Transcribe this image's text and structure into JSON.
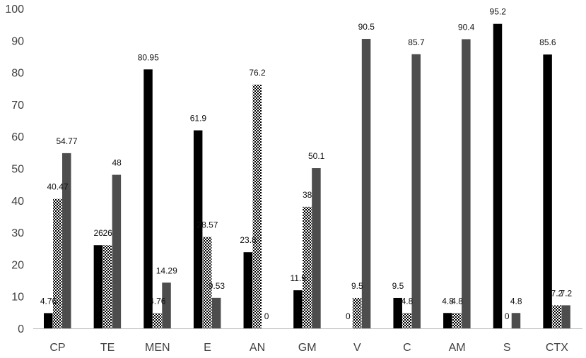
{
  "chart_data": {
    "type": "bar",
    "categories": [
      "CP",
      "TE",
      "MEN",
      "E",
      "AN",
      "GM",
      "V",
      "C",
      "AM",
      "S",
      "CTX"
    ],
    "series": [
      {
        "values": [
          4.76,
          26,
          80.95,
          61.9,
          23.8,
          11.9,
          0,
          9.5,
          4.8,
          95.2,
          85.6
        ],
        "labels": [
          "4.76",
          "26",
          "80.95",
          "61.9",
          "23.8",
          "11.9",
          "0",
          "9.5",
          "4.8",
          "95.2",
          "85.6"
        ],
        "color": "#000000",
        "pattern": "solid"
      },
      {
        "values": [
          40.47,
          26,
          4.76,
          28.57,
          76.2,
          38,
          9.5,
          4.8,
          4.8,
          0,
          7.2
        ],
        "labels": [
          "40.47",
          "26",
          "4.76",
          "28.57",
          "76.2",
          "38",
          "9.5",
          "4.8",
          "4.8",
          "0",
          "7.2"
        ],
        "color": "#000000",
        "pattern": "checker"
      },
      {
        "values": [
          54.77,
          48,
          14.29,
          9.53,
          0,
          50.1,
          90.5,
          85.7,
          90.4,
          4.8,
          7.2
        ],
        "labels": [
          "54.77",
          "48",
          "14.29",
          "9.53",
          "0",
          "50.1",
          "90.5",
          "85.7",
          "90.4",
          "4.8",
          "7.2"
        ],
        "color": "#4d4d4d",
        "pattern": "solid"
      }
    ],
    "ylim": [
      0,
      100
    ],
    "yticks": [
      "0",
      "10",
      "20",
      "30",
      "40",
      "50",
      "60",
      "70",
      "80",
      "90",
      "100"
    ],
    "grid": false,
    "legend": "none"
  }
}
